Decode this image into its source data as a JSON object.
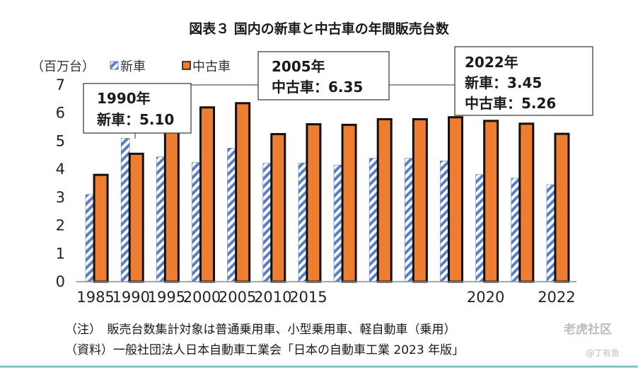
{
  "chart_data": {
    "type": "bar",
    "title": "図表３ 国内の新車と中古車の年間販売台数",
    "ylabel": "（百万台）",
    "ylim": [
      0,
      7
    ],
    "yticks": [
      "0",
      "1",
      "2",
      "3",
      "4",
      "5",
      "6",
      "7"
    ],
    "categories": [
      "1985",
      "1990",
      "1995",
      "2000",
      "2005",
      "2010",
      "2015",
      "2016",
      "2017",
      "2018",
      "2019",
      "2020",
      "2021",
      "2022"
    ],
    "shown_xticks": [
      "1985",
      "1990",
      "1995",
      "2000",
      "2005",
      "2010",
      "2015",
      "2020",
      "2022"
    ],
    "series": [
      {
        "name": "新車",
        "values": [
          3.1,
          5.1,
          4.44,
          4.24,
          4.75,
          4.21,
          4.22,
          4.15,
          4.39,
          4.39,
          4.3,
          3.81,
          3.68,
          3.45
        ]
      },
      {
        "name": "中古車",
        "values": [
          3.8,
          4.55,
          5.55,
          6.2,
          6.35,
          5.25,
          5.6,
          5.58,
          5.78,
          5.78,
          5.85,
          5.72,
          5.62,
          5.26
        ]
      }
    ],
    "legend_position": "top-left",
    "annotations": [
      {
        "line1": "1990年",
        "line2": "新車：5.10"
      },
      {
        "line1": "2005年",
        "line2": "中古車：6.35"
      },
      {
        "line1": "2022年",
        "line2": "新車：3.45",
        "line3": "中古車：5.26"
      }
    ]
  },
  "notes": {
    "line1": "（注）　販売台数集計対象は普通乗用車、小型乗用車、軽自動車（乗用）",
    "line2": "（資料）一般社団法人日本自動車工業会「日本の自動車工業 2023 年版」"
  },
  "watermark": {
    "main": "老虎社区",
    "sub": "@丁有鱼"
  },
  "colors": {
    "new_stripe": "#5b7fc7",
    "used_fill": "#ed7d31",
    "bar_outline": "#111111",
    "axis": "#888888",
    "bottom_rule": "#7fc3c4"
  }
}
